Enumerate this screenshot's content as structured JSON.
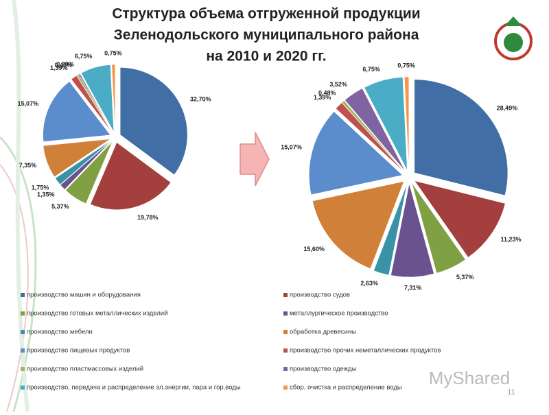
{
  "title": [
    "Структура объема отгруженной продукции",
    "Зеленодольского муниципального района",
    "на 2010 и 2020 гг."
  ],
  "page_number": "11",
  "watermark": "MyShared",
  "chart_data": {
    "type": "pie",
    "categories": [
      "производство машин и оборудования",
      "производство судов",
      "производство готовых металлических изделий",
      "металлургическое производство",
      "производство мебели",
      "обработка древесины",
      "производство пищевых продуктов",
      "производство прочих неметаллических продуктов",
      "производство пластмассовых изделий",
      "производство одежды",
      "производство, передача и распределение эл.энергии, пара и гор.воды",
      "сбор, очистка и распределение воды"
    ],
    "colors": [
      "#416ea4",
      "#a3403d",
      "#80a043",
      "#6a5190",
      "#3a92a6",
      "#d1803a",
      "#5b8ccb",
      "#c0504d",
      "#9bbb59",
      "#8064a2",
      "#4bacc6",
      "#f79646"
    ],
    "series": [
      {
        "values": [
          32.7,
          19.78,
          5.37,
          1.35,
          1.75,
          7.35,
          15.07,
          1.39,
          0.48,
          0.29,
          6.75,
          0.75
        ],
        "value_labels": [
          "32,70%",
          "19,78%",
          "5,37%",
          "1,35%",
          "1,75%",
          "7,35%",
          "15,07%",
          "1,39%",
          "0,48%",
          "0,29%",
          "6,75%",
          "0,75%"
        ]
      },
      {
        "values": [
          28.49,
          11.23,
          5.37,
          7.31,
          2.63,
          15.6,
          15.07,
          1.39,
          0.48,
          3.52,
          6.75,
          0.75
        ],
        "value_labels": [
          "28,49%",
          "11,23%",
          "5,37%",
          "7,31%",
          "2,63%",
          "15,60%",
          "15,07%",
          "1,39%",
          "0,48%",
          "3,52%",
          "6,75%",
          "0,75%"
        ]
      }
    ]
  }
}
